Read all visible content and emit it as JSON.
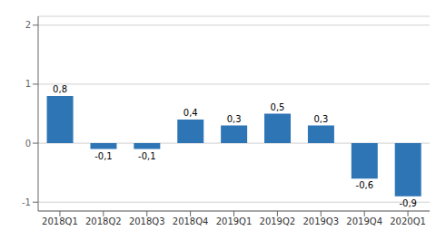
{
  "chart_data": {
    "type": "bar",
    "categories": [
      "2018Q1",
      "2018Q2",
      "2018Q3",
      "2018Q4",
      "2019Q1",
      "2019Q2",
      "2019Q3",
      "2019Q4",
      "2020Q1"
    ],
    "values": [
      0.8,
      -0.1,
      -0.1,
      0.4,
      0.3,
      0.5,
      0.3,
      -0.6,
      -0.9
    ],
    "value_labels": [
      "0,8",
      "-0,1",
      "-0,1",
      "0,4",
      "0,3",
      "0,5",
      "0,3",
      "-0,6",
      "-0,9"
    ],
    "color": "#2e75b6",
    "ylim": [
      -1.15,
      2.15
    ],
    "yticks": [
      -1,
      0,
      1,
      2
    ],
    "grid": true,
    "data_labels": true
  }
}
